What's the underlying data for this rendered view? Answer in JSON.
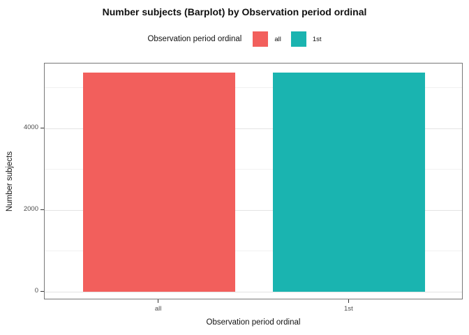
{
  "figure": {
    "title": "Number subjects (Barplot) by Observation period ordinal"
  },
  "legend": {
    "title": "Observation period ordinal",
    "items": [
      {
        "label": "all",
        "color": "#F25F5C"
      },
      {
        "label": "1st",
        "color": "#1AB4B0"
      }
    ]
  },
  "chart_data": {
    "type": "bar",
    "title": "Number subjects (Barplot) by Observation period ordinal",
    "categories": [
      "all",
      "1st"
    ],
    "series": [
      {
        "name": "Number subjects",
        "values": [
          5370,
          5370
        ]
      }
    ],
    "bar_colors": [
      "#F25F5C",
      "#1AB4B0"
    ],
    "xlabel": "Observation period ordinal",
    "ylabel": "Number subjects",
    "y_major_ticks": [
      0,
      2000,
      4000
    ],
    "y_minor_ticks": [
      1000,
      3000,
      5000
    ],
    "ylim": [
      -205,
      5590
    ],
    "grid": true,
    "legend_position": "top",
    "legend_title": "Observation period ordinal",
    "bar_centers_frac": [
      0.2727,
      0.7273
    ],
    "bar_width_frac": 0.3636
  }
}
